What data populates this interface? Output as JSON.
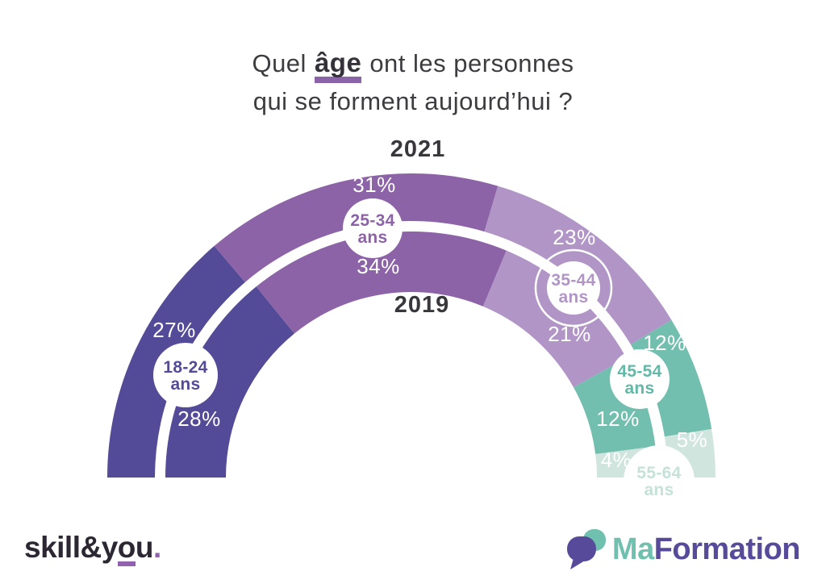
{
  "title": {
    "prefix": "Quel",
    "highlight": "âge",
    "suffix": "ont les personnes",
    "line2": "qui se forment aujourd’hui ?",
    "underline_color": "#8a63a8"
  },
  "chart_data": {
    "type": "pie",
    "subtype": "half-donut-two-rings",
    "unit": "%",
    "categories": [
      "18-24 ans",
      "25-34 ans",
      "35-44 ans",
      "45-54 ans",
      "55-64 ans"
    ],
    "rings": [
      {
        "name": "2021",
        "position": "outer",
        "values": [
          27,
          31,
          23,
          12,
          5
        ]
      },
      {
        "name": "2019",
        "position": "inner",
        "values": [
          28,
          34,
          21,
          12,
          4
        ]
      }
    ],
    "colors": [
      "#544b98",
      "#8d63a7",
      "#b195c6",
      "#72bfaf",
      "#cfe5de"
    ],
    "label_colors": [
      "#544b98",
      "#8d63a7",
      "#b195c6",
      "#62b9a7",
      "#c4e2d8"
    ],
    "value_label_color": "#ffffff",
    "legend_position": "outer-top-and-inner-center",
    "angle_span_deg": 180
  },
  "footer": {
    "skillyou": {
      "part1": "skill&y",
      "part2": "o",
      "part3": "u",
      "dot": ".",
      "accent_color": "#9162ad",
      "text_color": "#2c2733"
    },
    "maformation": {
      "part1": "Ma",
      "part2": "Formation",
      "teal": "#6fc0af",
      "purple": "#584a9b"
    }
  }
}
